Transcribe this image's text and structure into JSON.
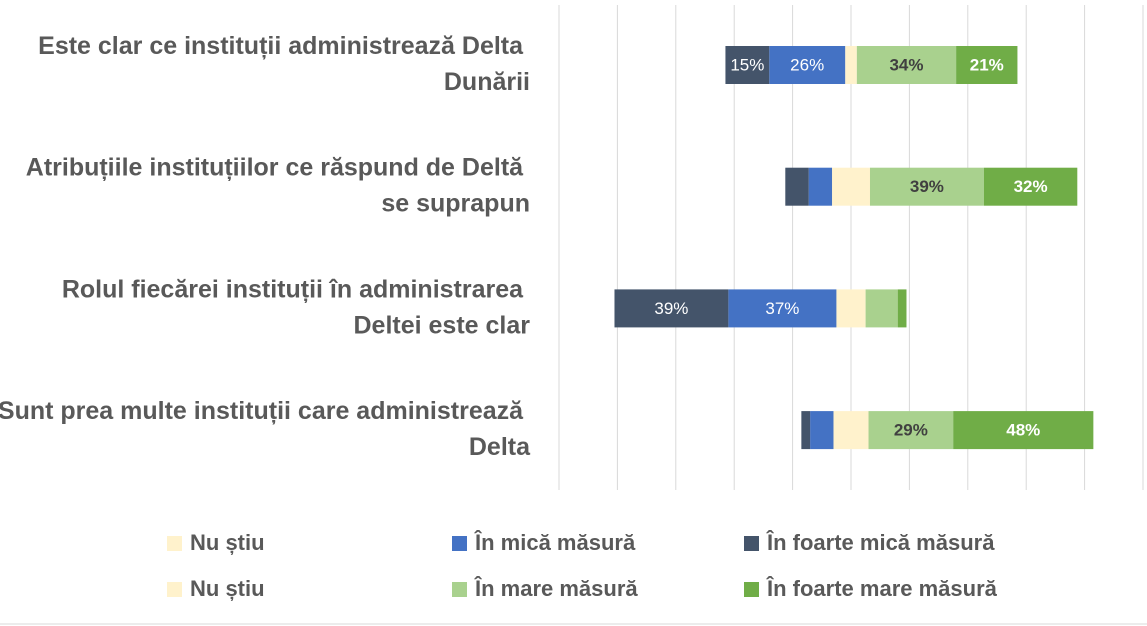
{
  "chart_data": {
    "type": "bar",
    "orientation": "horizontal",
    "stacked": true,
    "categories": [
      "Este clar ce instituții administrează Delta Dunării",
      "Atribuțiile instituțiilor ce răspund de Deltă se suprapun",
      "Rolul fiecărei instituții în administrarea Deltei este clar",
      "Sunt prea multe instituții care administrează Delta"
    ],
    "series": [
      {
        "name": "Nu știu",
        "color": "#fff2cc",
        "side": "left",
        "values": [
          2,
          6.5,
          5,
          6
        ]
      },
      {
        "name": "În mică măsură",
        "color": "#4472c4",
        "side": "left",
        "values": [
          26,
          8,
          37,
          8
        ],
        "value_labels": [
          "26%",
          null,
          "37%",
          null
        ]
      },
      {
        "name": "În foarte mică măsură",
        "color": "#44546a",
        "side": "left",
        "values": [
          15,
          8,
          39,
          3
        ],
        "value_labels": [
          "15%",
          null,
          "39%",
          null
        ]
      },
      {
        "name": "Nu știu",
        "color": "#fff2cc",
        "side": "right",
        "values": [
          2,
          6.5,
          5,
          6
        ]
      },
      {
        "name": "În mare măsură",
        "color": "#a9d18e",
        "side": "right",
        "values": [
          34,
          39,
          11,
          29
        ],
        "value_labels": [
          "34%",
          "39%",
          null,
          "29%"
        ]
      },
      {
        "name": "În foarte mare măsură",
        "color": "#70ad47",
        "side": "right",
        "values": [
          21,
          32,
          3,
          48
        ],
        "value_labels": [
          "21%",
          "32%",
          null,
          "48%"
        ]
      }
    ],
    "xlim": [
      -100,
      100
    ],
    "xticks": [
      -100,
      -80,
      -60,
      -40,
      -20,
      0,
      20,
      40,
      60,
      80,
      100
    ],
    "grid": true
  }
}
